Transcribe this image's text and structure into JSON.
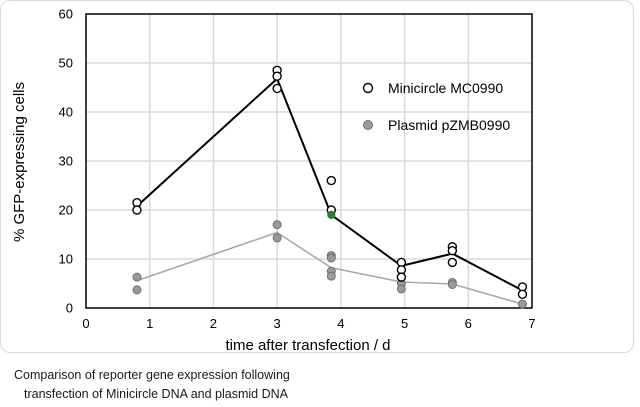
{
  "chart_data": {
    "type": "scatter",
    "xlabel": "time after transfection / d",
    "ylabel": "% GFP-expressing cells",
    "xlim": [
      0,
      7
    ],
    "ylim": [
      0,
      60
    ],
    "xticks": [
      0,
      1,
      2,
      3,
      4,
      5,
      6,
      7
    ],
    "yticks": [
      0,
      10,
      20,
      30,
      40,
      50,
      60
    ],
    "grid": true,
    "legend_position": "right",
    "series": [
      {
        "name": "Minicircle MC0990",
        "marker": "open-circle",
        "line_color": "#000000",
        "points": [
          [
            0.8,
            21.5
          ],
          [
            0.8,
            20.0
          ],
          [
            3.0,
            48.5
          ],
          [
            3.0,
            47.3
          ],
          [
            3.0,
            44.8
          ],
          [
            3.85,
            26.0
          ],
          [
            3.85,
            20.0
          ],
          [
            4.95,
            9.3
          ],
          [
            4.95,
            7.8
          ],
          [
            4.95,
            6.3
          ],
          [
            5.75,
            12.5
          ],
          [
            5.75,
            11.7
          ],
          [
            5.75,
            9.3
          ],
          [
            6.85,
            4.3
          ],
          [
            6.85,
            2.8
          ]
        ],
        "line": [
          [
            0.8,
            20.8
          ],
          [
            3.0,
            46.8
          ],
          [
            3.85,
            19.0
          ],
          [
            4.95,
            8.6
          ],
          [
            5.75,
            11.1
          ],
          [
            6.85,
            3.6
          ]
        ]
      },
      {
        "name": "Plasmid pZMB0990",
        "marker": "filled-circle",
        "marker_color": "#9a9a9a",
        "line_color": "#a8a8a8",
        "points": [
          [
            0.8,
            6.3
          ],
          [
            0.8,
            3.7
          ],
          [
            3.0,
            17.0
          ],
          [
            3.0,
            14.3
          ],
          [
            3.85,
            10.7
          ],
          [
            3.85,
            10.2
          ],
          [
            3.85,
            7.5
          ],
          [
            3.85,
            6.5
          ],
          [
            4.95,
            6.3
          ],
          [
            4.95,
            5.0
          ],
          [
            4.95,
            3.9
          ],
          [
            5.75,
            5.2
          ],
          [
            5.75,
            4.8
          ],
          [
            6.85,
            0.8
          ]
        ],
        "line": [
          [
            0.8,
            5.6
          ],
          [
            3.0,
            15.4
          ],
          [
            3.85,
            8.2
          ],
          [
            4.95,
            5.3
          ],
          [
            5.75,
            4.9
          ],
          [
            6.85,
            0.8
          ]
        ]
      }
    ],
    "highlight_point": {
      "x": 3.85,
      "y": 19.0,
      "color": "#2e7d32"
    }
  },
  "caption": {
    "line1": "Comparison of reporter gene expression following",
    "line2": "transfection of Minicircle DNA and plasmid DNA"
  }
}
